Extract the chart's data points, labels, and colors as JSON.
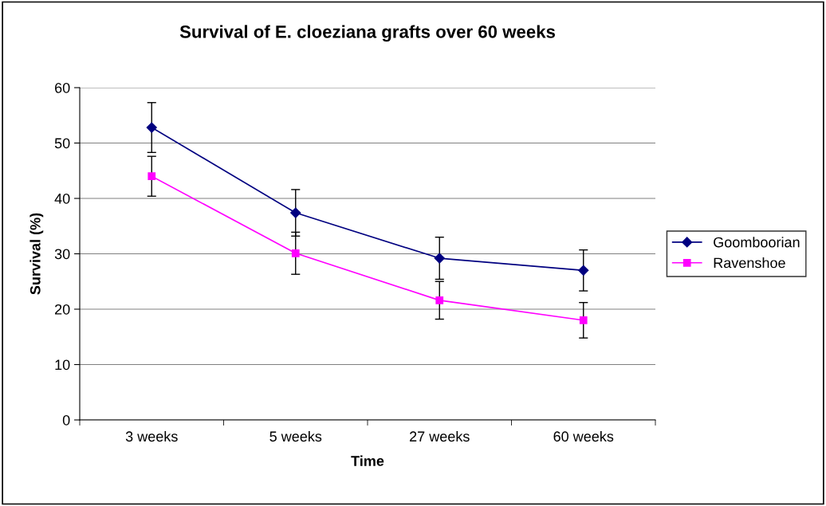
{
  "chart_data": {
    "type": "line",
    "title": "Survival of E. cloeziana grafts over 60 weeks",
    "xlabel": "Time",
    "ylabel": "Survival (%)",
    "categories": [
      "3 weeks",
      "5 weeks",
      "27 weeks",
      "60 weeks"
    ],
    "series": [
      {
        "name": "Goomboorian",
        "color": "#000080",
        "marker": "diamond",
        "values": [
          52.8,
          37.4,
          29.2,
          27.0
        ],
        "errors": [
          4.5,
          4.2,
          3.8,
          3.7
        ]
      },
      {
        "name": "Ravenshoe",
        "color": "#ff00ff",
        "marker": "square",
        "values": [
          44.0,
          30.1,
          21.6,
          18.0
        ],
        "errors": [
          3.6,
          3.8,
          3.4,
          3.2
        ]
      }
    ],
    "ylim": [
      0,
      60
    ],
    "yticks": [
      0,
      10,
      20,
      30,
      40,
      50,
      60
    ],
    "grid": "y",
    "legend": "right",
    "line_style": "solid"
  }
}
